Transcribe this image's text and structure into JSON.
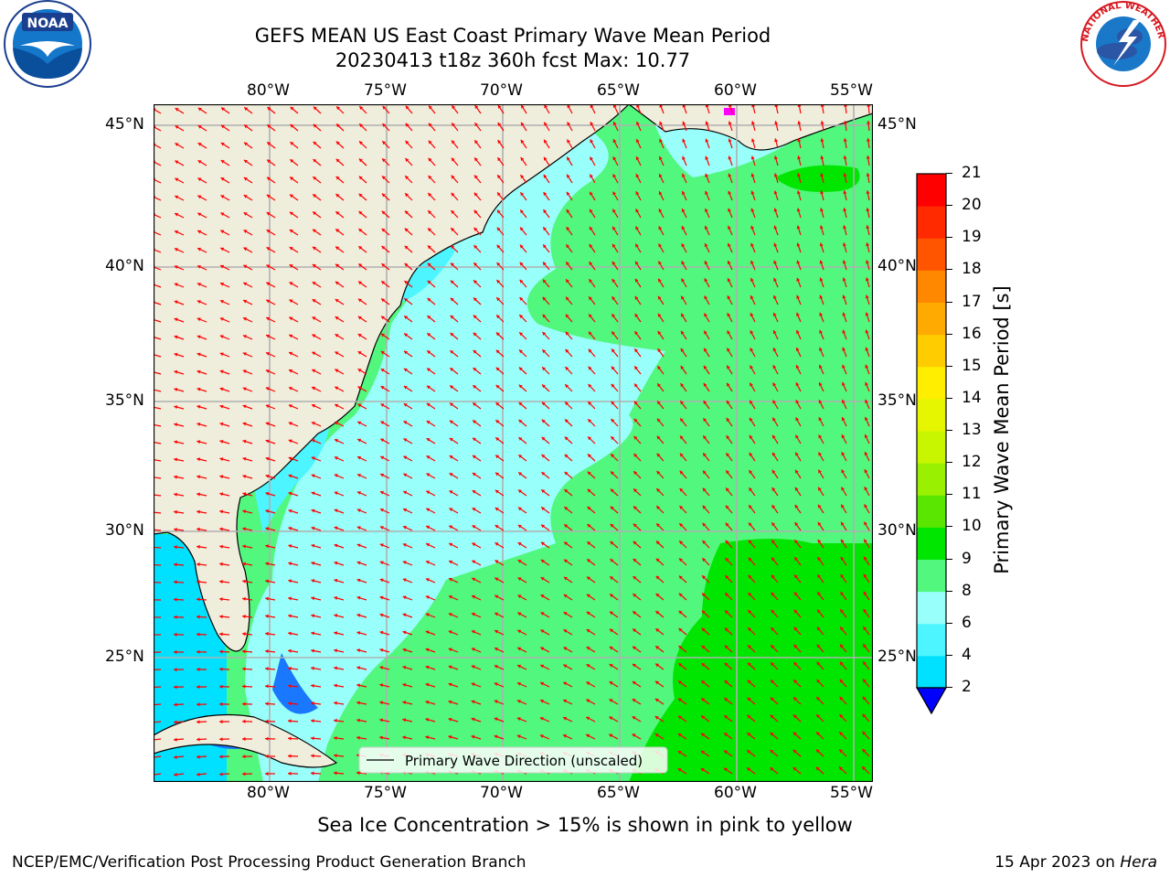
{
  "header": {
    "title_line1": "GEFS MEAN US East Coast Primary Wave Mean Period",
    "title_line2": "20230413 t18z 360h fcst   Max: 10.77"
  },
  "logos": {
    "left": {
      "name": "noaa-logo",
      "text": "NOAA"
    },
    "right": {
      "name": "nws-logo",
      "text": "NATIONAL WEATHER SERVICE"
    }
  },
  "map": {
    "lon_ticks": [
      "80°W",
      "75°W",
      "70°W",
      "65°W",
      "60°W",
      "55°W"
    ],
    "lat_ticks": [
      "45°N",
      "40°N",
      "35°N",
      "30°N",
      "25°N"
    ],
    "legend_label": "Primary Wave Direction (unscaled)",
    "colors": {
      "land": "#efeddc",
      "light_cyan": "#99fffb",
      "cyan": "#4cf5ff",
      "green_light": "#52f77e",
      "green": "#00e600",
      "blue": "#1a78ff"
    }
  },
  "colorbar": {
    "label": "Primary Wave Mean Period [s]",
    "ticks": [
      "2",
      "4",
      "6",
      "8",
      "9",
      "10",
      "11",
      "12",
      "13",
      "14",
      "15",
      "16",
      "17",
      "18",
      "19",
      "20",
      "21"
    ],
    "colors": [
      "#0066ff",
      "#00e1ff",
      "#4cf5ff",
      "#99fffb",
      "#52f77e",
      "#00e600",
      "#5ae600",
      "#99f000",
      "#c8f500",
      "#e6f500",
      "#ffee00",
      "#ffcc00",
      "#ffaa00",
      "#ff8800",
      "#ff5500",
      "#ff2a00",
      "#ff0000"
    ],
    "extend_color": "#0000ff"
  },
  "footer": {
    "note": "Sea Ice Concentration > 15% is shown in pink to yellow",
    "org": "NCEP/EMC/Verification Post Processing Product Generation Branch",
    "date": "15 Apr 2023 on ",
    "machine": "Hera"
  }
}
